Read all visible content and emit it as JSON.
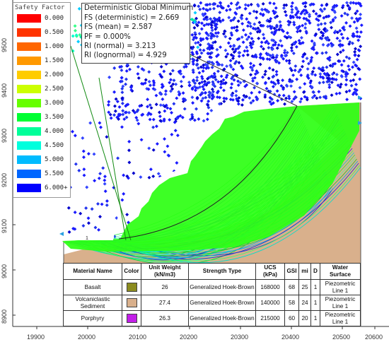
{
  "legend": {
    "title": "Safety Factor",
    "entries": [
      {
        "label": "0.000",
        "color": "#ff0000"
      },
      {
        "label": "0.500",
        "color": "#ff3300"
      },
      {
        "label": "1.000",
        "color": "#ff6600"
      },
      {
        "label": "1.500",
        "color": "#ff9900"
      },
      {
        "label": "2.000",
        "color": "#ffcc00"
      },
      {
        "label": "2.500",
        "color": "#ccff00"
      },
      {
        "label": "3.000",
        "color": "#66ff00"
      },
      {
        "label": "3.500",
        "color": "#00ff33"
      },
      {
        "label": "4.000",
        "color": "#00ff99"
      },
      {
        "label": "4.500",
        "color": "#00ffdd"
      },
      {
        "label": "5.000",
        "color": "#00bbff"
      },
      {
        "label": "5.500",
        "color": "#0066ff"
      },
      {
        "label": "6.000+",
        "color": "#0000ff"
      }
    ]
  },
  "info": {
    "title": "Deterministic Global Minimum",
    "fs_det": "FS (deterministic) = 2.669",
    "fs_mean": "FS (mean) = 2.587",
    "pf": "PF = 0.000%",
    "ri_normal": "RI (normal) = 3.213",
    "ri_lognormal": "RI (lognormal) = 4.929"
  },
  "axes": {
    "y_ticks": [
      "9500",
      "9400",
      "9300",
      "9200",
      "9100",
      "9000",
      "8900"
    ],
    "x_ticks": [
      "19900",
      "20000",
      "20100",
      "20200",
      "20300",
      "20400",
      "20500",
      "20600"
    ]
  },
  "marker_label": "1",
  "table": {
    "headers": [
      "Material Name",
      "Color",
      "Unit Weight (kN/m3)",
      "Strength Type",
      "UCS (kPa)",
      "GSI",
      "mi",
      "D",
      "Water Surface"
    ],
    "rows": [
      {
        "name": "Basalt",
        "color": "#8b8b1f",
        "uw": "26",
        "strength": "Generalized Hoek-Brown",
        "ucs": "168000",
        "gsi": "68",
        "mi": "25",
        "d": "1",
        "water": "Piezometric Line 1"
      },
      {
        "name": "Volcaniclastic Sediment",
        "color": "#d9b08c",
        "uw": "27.4",
        "strength": "Generalized Hoek-Brown",
        "ucs": "140000",
        "gsi": "58",
        "mi": "24",
        "d": "1",
        "water": "Piezometric Line 1"
      },
      {
        "name": "Porphyry",
        "color": "#c21ee8",
        "uw": "26.3",
        "strength": "Generalized Hoek-Brown",
        "ucs": "215000",
        "gsi": "60",
        "mi": "20",
        "d": "1",
        "water": "Piezometric Line 1"
      }
    ]
  },
  "colors": {
    "rock_tan": "#d9b08c",
    "slip_green": "#2cff12",
    "dot_blue": "#1a1aff",
    "axis": "#333333"
  }
}
